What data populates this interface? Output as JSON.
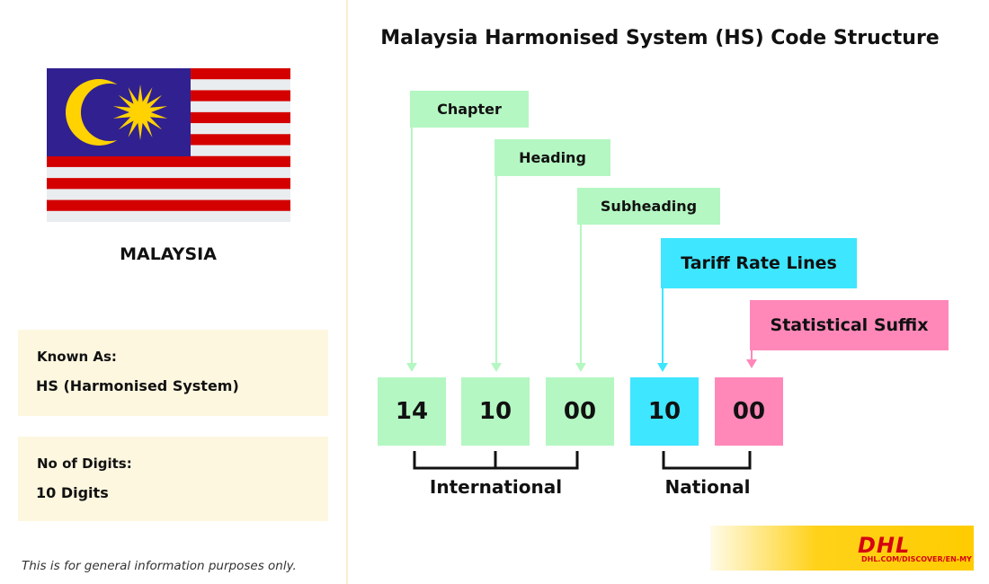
{
  "title": "Malaysia Harmonised System (HS) Code Structure",
  "country": {
    "name": "MALAYSIA",
    "flag_icon": "malaysia-flag",
    "flag_colors": {
      "blue": "#312090",
      "red": "#d40000",
      "white": "#eaedf0",
      "yellow": "#ffd200"
    }
  },
  "known_as": {
    "label": "Known As:",
    "value": "HS (Harmonised System)"
  },
  "digits": {
    "label": "No of Digits:",
    "value": "10 Digits"
  },
  "disclaimer": "This is for general information purposes only.",
  "labels": {
    "chapter": "Chapter",
    "heading": "Heading",
    "subheading": "Subheading",
    "tariff": "Tariff Rate Lines",
    "suffix": "Statistical Suffix"
  },
  "codes": [
    "14",
    "10",
    "00",
    "10",
    "00"
  ],
  "groups": {
    "international": "International",
    "national": "National"
  },
  "colors": {
    "green": "#b4f7c2",
    "cyan": "#3ee6ff",
    "pink": "#ff88b9",
    "dhl_yellow": "#ffcc00",
    "dhl_red": "#d40511"
  },
  "brand": {
    "logo": "DHL",
    "url": "DHL.COM/DISCOVER/EN-MY"
  }
}
